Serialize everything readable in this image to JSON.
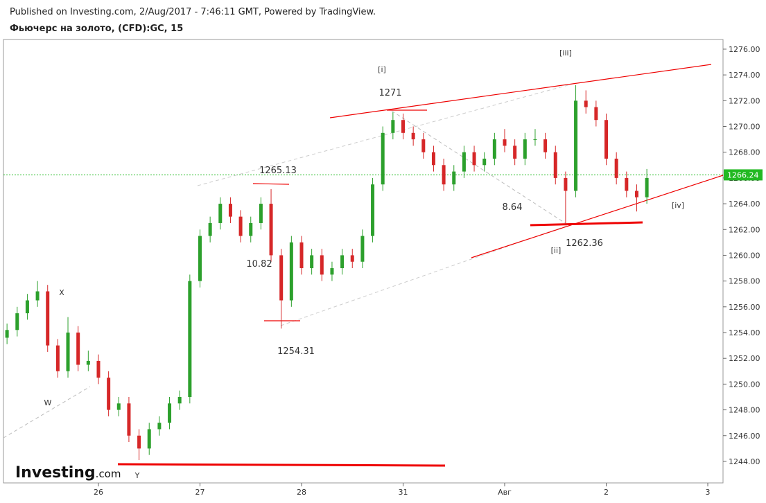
{
  "header": {
    "published": "Published on Investing.com, 2/Aug/2017 - 7:46:11 GMT, Powered by TradingView.",
    "title": "Фьючерс на золото, (CFD):GC, 15",
    "logo_main": "Investing",
    "logo_suffix": ".com"
  },
  "chart_data": {
    "type": "candlestick",
    "x": [
      -0.9,
      -0.8,
      -0.7,
      -0.6,
      -0.5,
      -0.4,
      -0.3,
      -0.2,
      -0.1,
      0.0,
      0.1,
      0.2,
      0.3,
      0.4,
      0.5,
      0.6,
      0.7,
      0.8,
      0.9,
      1.0,
      1.1,
      1.2,
      1.3,
      1.4,
      1.5,
      1.6,
      1.7,
      1.8,
      1.9,
      2.0,
      2.1,
      2.2,
      2.3,
      2.4,
      2.5,
      2.6,
      2.7,
      2.8,
      2.9,
      3.0,
      3.1,
      3.2,
      3.3,
      3.4,
      3.5,
      3.6,
      3.7,
      3.8,
      3.9,
      4.0,
      4.1,
      4.2,
      4.3,
      4.4,
      4.5,
      4.6,
      4.7,
      4.8,
      4.9,
      5.0,
      5.1,
      5.2,
      5.3,
      5.4
    ],
    "open": [
      1253.6,
      1254.2,
      1255.5,
      1256.5,
      1257.2,
      1253.0,
      1251.0,
      1254.0,
      1251.5,
      1251.8,
      1250.5,
      1248.0,
      1248.5,
      1246.0,
      1245.0,
      1246.5,
      1247.0,
      1248.5,
      1249.0,
      1258.0,
      1261.5,
      1262.5,
      1264.0,
      1263.0,
      1261.5,
      1262.5,
      1264.0,
      1260.0,
      1256.5,
      1261.0,
      1259.0,
      1260.0,
      1258.5,
      1259.0,
      1260.0,
      1259.5,
      1261.5,
      1265.5,
      1269.5,
      1270.5,
      1269.5,
      1269.0,
      1268.0,
      1267.0,
      1265.5,
      1266.5,
      1268.0,
      1267.0,
      1267.5,
      1269.0,
      1268.5,
      1267.5,
      1269.0,
      1269.0,
      1268.0,
      1266.0,
      1265.0,
      1272.0,
      1271.5,
      1270.5,
      1267.5,
      1266.0,
      1265.0,
      1264.5
    ],
    "high": [
      1254.7,
      1256.0,
      1257.0,
      1258.0,
      1257.7,
      1253.5,
      1255.2,
      1254.5,
      1252.6,
      1252.3,
      1251.0,
      1249.0,
      1249.0,
      1246.5,
      1247.0,
      1247.5,
      1249.0,
      1249.5,
      1258.5,
      1262.0,
      1263.0,
      1264.5,
      1264.5,
      1263.5,
      1263.0,
      1264.5,
      1265.13,
      1260.5,
      1261.5,
      1261.5,
      1260.5,
      1260.5,
      1259.5,
      1260.5,
      1260.5,
      1262.0,
      1266.0,
      1270.0,
      1271.1,
      1271.0,
      1270.0,
      1269.5,
      1268.5,
      1267.5,
      1267.0,
      1268.5,
      1268.5,
      1268.0,
      1269.5,
      1269.8,
      1269.0,
      1269.5,
      1269.8,
      1269.5,
      1268.5,
      1266.5,
      1273.2,
      1272.8,
      1272.0,
      1271.0,
      1268.0,
      1266.5,
      1265.5,
      1266.7
    ],
    "low": [
      1253.1,
      1253.7,
      1255.0,
      1256.0,
      1252.5,
      1250.5,
      1250.5,
      1251.0,
      1251.0,
      1250.0,
      1247.5,
      1247.5,
      1245.5,
      1244.1,
      1244.5,
      1246.0,
      1246.5,
      1248.0,
      1248.5,
      1257.5,
      1261.0,
      1262.0,
      1262.5,
      1261.0,
      1261.0,
      1262.0,
      1259.5,
      1254.31,
      1256.0,
      1258.5,
      1258.5,
      1258.0,
      1258.0,
      1258.5,
      1259.0,
      1259.0,
      1261.0,
      1265.0,
      1269.0,
      1269.0,
      1268.5,
      1267.5,
      1266.5,
      1265.0,
      1265.0,
      1266.0,
      1266.5,
      1266.5,
      1267.0,
      1268.0,
      1267.0,
      1267.0,
      1268.5,
      1267.5,
      1265.5,
      1262.36,
      1264.5,
      1271.0,
      1270.0,
      1267.0,
      1265.5,
      1264.5,
      1263.4,
      1264.0
    ],
    "close": [
      1254.2,
      1255.5,
      1256.5,
      1257.2,
      1253.0,
      1251.0,
      1254.0,
      1251.5,
      1251.8,
      1250.5,
      1248.0,
      1248.5,
      1246.0,
      1245.0,
      1246.5,
      1247.0,
      1248.5,
      1249.0,
      1258.0,
      1261.5,
      1262.5,
      1264.0,
      1263.0,
      1261.5,
      1262.5,
      1264.0,
      1260.0,
      1256.5,
      1261.0,
      1259.0,
      1260.0,
      1258.5,
      1259.0,
      1260.0,
      1259.5,
      1261.5,
      1265.5,
      1269.5,
      1270.5,
      1269.5,
      1269.0,
      1268.0,
      1267.0,
      1265.5,
      1266.5,
      1268.0,
      1267.0,
      1267.5,
      1269.0,
      1268.5,
      1267.5,
      1269.0,
      1269.0,
      1268.0,
      1266.0,
      1265.0,
      1272.0,
      1271.5,
      1270.5,
      1267.5,
      1266.0,
      1265.0,
      1264.5,
      1266.0
    ],
    "up_color": "#2ca02c",
    "down_color": "#d62728",
    "xlim": [
      -0.935,
      6.15
    ],
    "xticks": [
      {
        "value": 0,
        "label": "26"
      },
      {
        "value": 1,
        "label": "27"
      },
      {
        "value": 2,
        "label": "28"
      },
      {
        "value": 3,
        "label": "31"
      },
      {
        "value": 4,
        "label": "Авг"
      },
      {
        "value": 5,
        "label": "2"
      },
      {
        "value": 6,
        "label": "3"
      }
    ],
    "ylim": [
      1242.33,
      1276.75
    ],
    "yticks": [
      {
        "value": 1244,
        "label": "1244.00"
      },
      {
        "value": 1246,
        "label": "1246.00"
      },
      {
        "value": 1248,
        "label": "1248.00"
      },
      {
        "value": 1250,
        "label": "1250.00"
      },
      {
        "value": 1252,
        "label": "1252.00"
      },
      {
        "value": 1254,
        "label": "1254.00"
      },
      {
        "value": 1256,
        "label": "1256.00"
      },
      {
        "value": 1258,
        "label": "1258.00"
      },
      {
        "value": 1260,
        "label": "1260.00"
      },
      {
        "value": 1262,
        "label": "1262.00"
      },
      {
        "value": 1264,
        "label": "1264.00"
      },
      {
        "value": 1266,
        "label": "1266.00"
      },
      {
        "value": 1268,
        "label": "1268.00"
      },
      {
        "value": 1270,
        "label": "1270.00"
      },
      {
        "value": 1272,
        "label": "1272.00"
      },
      {
        "value": 1274,
        "label": "1274.00"
      },
      {
        "value": 1276,
        "label": "1276.00"
      }
    ],
    "last_price": 1266.24,
    "last_price_color": "#22b922",
    "annotations": [
      "[i]",
      "1271",
      "[iii]",
      "1265.13",
      "10.82",
      "8.64",
      "1254.31",
      "1262.36",
      "[ii]",
      "[iv]",
      "X",
      "W",
      "Y"
    ]
  }
}
